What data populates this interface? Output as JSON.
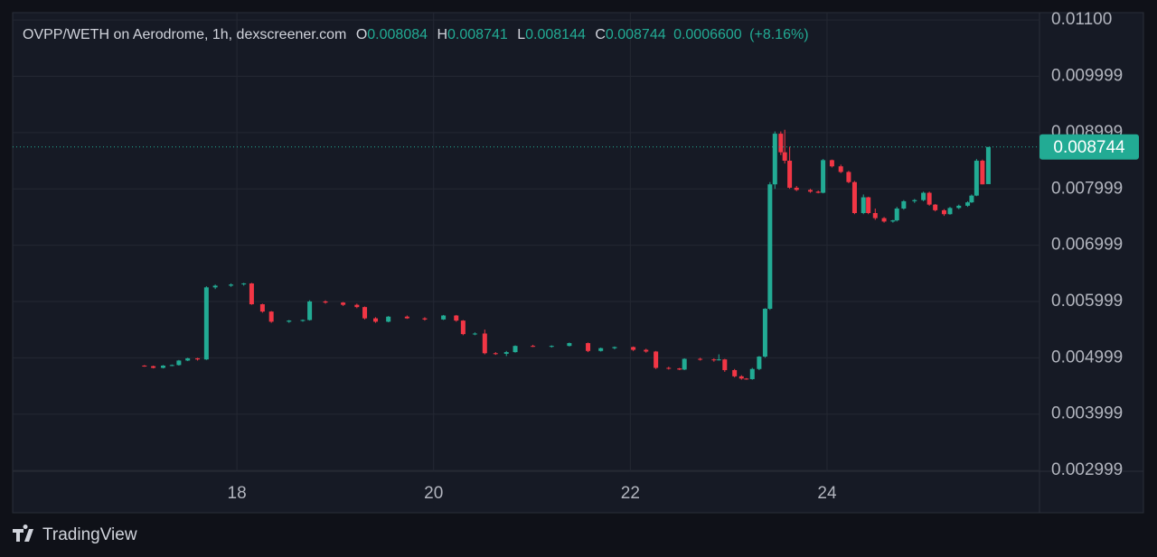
{
  "chart_data": {
    "type": "candlestick",
    "header": {
      "title": "OVPP/WETH on Aerodrome, 1h, dexscreener.com",
      "open_label": "O",
      "open": "0.008084",
      "high_label": "H",
      "high": "0.008741",
      "low_label": "L",
      "low": "0.008144",
      "close_label": "C",
      "close": "0.008744",
      "change": "0.0006600",
      "change_pct": "(+8.16%)"
    },
    "brand": "TradingView",
    "up_color": "#22ab94",
    "down_color": "#f23645",
    "grid": true,
    "last_price": {
      "value": 0.008744,
      "label": "0.008744"
    },
    "xlim": [
      15.72,
      26.16
    ],
    "xticks": [
      18,
      20,
      22,
      24
    ],
    "ylim": [
      0.002984,
      0.01113
    ],
    "yticks": [
      {
        "value": 0.011,
        "label": "0.01100"
      },
      {
        "value": 0.009999,
        "label": "0.009999"
      },
      {
        "value": 0.008999,
        "label": "0.008999"
      },
      {
        "value": 0.007999,
        "label": "0.007999"
      },
      {
        "value": 0.006999,
        "label": "0.006999"
      },
      {
        "value": 0.005999,
        "label": "0.005999"
      },
      {
        "value": 0.004999,
        "label": "0.004999"
      },
      {
        "value": 0.003999,
        "label": "0.003999"
      },
      {
        "value": 0.002999,
        "label": "0.002999"
      }
    ],
    "x": [
      17.06,
      17.15,
      17.25,
      17.34,
      17.41,
      17.5,
      17.6,
      17.69,
      17.78,
      17.94,
      18.07,
      18.15,
      18.26,
      18.35,
      18.53,
      18.67,
      18.74,
      18.9,
      19.08,
      19.22,
      19.3,
      19.41,
      19.54,
      19.73,
      19.91,
      20.1,
      20.23,
      20.3,
      20.42,
      20.52,
      20.63,
      20.74,
      20.83,
      21.01,
      21.2,
      21.38,
      21.57,
      21.7,
      21.84,
      22.03,
      22.16,
      22.26,
      22.39,
      22.5,
      22.55,
      22.71,
      22.85,
      22.9,
      22.96,
      23.06,
      23.13,
      23.18,
      23.24,
      23.31,
      23.37,
      23.42,
      23.47,
      23.53,
      23.57,
      23.62,
      23.69,
      23.83,
      23.91,
      23.96,
      24.05,
      24.14,
      24.22,
      24.28,
      24.37,
      24.42,
      24.49,
      24.58,
      24.67,
      24.71,
      24.78,
      24.89,
      24.98,
      25.04,
      25.1,
      25.19,
      25.25,
      25.34,
      25.43,
      25.47,
      25.52,
      25.58,
      25.64
    ],
    "open": [
      0.00486,
      0.00485,
      0.00482,
      0.00486,
      0.00487,
      0.00495,
      0.00499,
      0.00497,
      0.00625,
      0.00628,
      0.00631,
      0.00632,
      0.00595,
      0.00582,
      0.00564,
      0.00566,
      0.00567,
      0.006,
      0.00598,
      0.00594,
      0.0059,
      0.0057,
      0.00564,
      0.00573,
      0.0057,
      0.00568,
      0.00575,
      0.00566,
      0.00542,
      0.00543,
      0.00508,
      0.00507,
      0.0051,
      0.00521,
      0.0052,
      0.00521,
      0.00526,
      0.00512,
      0.00517,
      0.00519,
      0.00514,
      0.00511,
      0.00482,
      0.00481,
      0.00479,
      0.00498,
      0.00497,
      0.00496,
      0.00497,
      0.00478,
      0.00467,
      0.00463,
      0.00462,
      0.0048,
      0.00502,
      0.00587,
      0.00808,
      0.00898,
      0.00865,
      0.0085,
      0.00802,
      0.00798,
      0.00795,
      0.00793,
      0.00851,
      0.0084,
      0.0083,
      0.00812,
      0.00757,
      0.00785,
      0.00757,
      0.00748,
      0.00742,
      0.00744,
      0.00765,
      0.00778,
      0.0078,
      0.00793,
      0.00772,
      0.00762,
      0.00755,
      0.00766,
      0.0077,
      0.00776,
      0.00788,
      0.0085,
      0.008084
    ],
    "high": [
      0.00487,
      0.00486,
      0.00487,
      0.00488,
      0.00496,
      0.005,
      0.005,
      0.00627,
      0.0063,
      0.00632,
      0.00633,
      0.00633,
      0.00596,
      0.00583,
      0.00567,
      0.00568,
      0.00602,
      0.00602,
      0.00599,
      0.00596,
      0.00591,
      0.00572,
      0.00574,
      0.00575,
      0.00572,
      0.00576,
      0.00576,
      0.00567,
      0.00545,
      0.0055,
      0.0051,
      0.00512,
      0.00522,
      0.00523,
      0.00522,
      0.00527,
      0.00527,
      0.00518,
      0.0052,
      0.0052,
      0.00516,
      0.00512,
      0.00484,
      0.00482,
      0.00499,
      0.005,
      0.00499,
      0.00506,
      0.00498,
      0.0048,
      0.00469,
      0.00464,
      0.00482,
      0.00503,
      0.00588,
      0.00812,
      0.00902,
      0.00902,
      0.00905,
      0.00875,
      0.00805,
      0.008,
      0.00797,
      0.00853,
      0.00852,
      0.00843,
      0.00832,
      0.00814,
      0.0079,
      0.00786,
      0.00765,
      0.0075,
      0.00745,
      0.00768,
      0.0078,
      0.00782,
      0.00795,
      0.00795,
      0.00773,
      0.00764,
      0.00768,
      0.00772,
      0.00778,
      0.0079,
      0.00853,
      0.00852,
      0.008741
    ],
    "low": [
      0.00484,
      0.00481,
      0.00481,
      0.00485,
      0.00486,
      0.00494,
      0.00495,
      0.00496,
      0.00622,
      0.00626,
      0.00628,
      0.00594,
      0.0058,
      0.00562,
      0.00562,
      0.00564,
      0.00566,
      0.00596,
      0.00592,
      0.00588,
      0.00568,
      0.00562,
      0.00563,
      0.00569,
      0.00566,
      0.00567,
      0.00564,
      0.0054,
      0.0054,
      0.00506,
      0.00505,
      0.00503,
      0.00509,
      0.00519,
      0.00518,
      0.0052,
      0.0051,
      0.00511,
      0.00515,
      0.00512,
      0.00509,
      0.0048,
      0.00479,
      0.00478,
      0.00478,
      0.00495,
      0.00493,
      0.00495,
      0.00475,
      0.00465,
      0.00461,
      0.00461,
      0.00461,
      0.00478,
      0.005,
      0.00585,
      0.008,
      0.0086,
      0.00845,
      0.008,
      0.00796,
      0.00793,
      0.00792,
      0.00792,
      0.00838,
      0.00828,
      0.0081,
      0.00755,
      0.00755,
      0.00755,
      0.00745,
      0.0074,
      0.0074,
      0.00742,
      0.00763,
      0.00775,
      0.00778,
      0.0077,
      0.0076,
      0.00752,
      0.00754,
      0.00764,
      0.00768,
      0.00775,
      0.00787,
      0.00808,
      0.008144
    ],
    "close": [
      0.00485,
      0.00482,
      0.00486,
      0.00487,
      0.00495,
      0.00499,
      0.00497,
      0.00625,
      0.00628,
      0.0063,
      0.00632,
      0.00595,
      0.00582,
      0.00564,
      0.00566,
      0.00567,
      0.006,
      0.00598,
      0.00594,
      0.0059,
      0.0057,
      0.00564,
      0.00573,
      0.0057,
      0.00568,
      0.00575,
      0.00566,
      0.00542,
      0.00543,
      0.00508,
      0.00507,
      0.0051,
      0.00521,
      0.0052,
      0.00521,
      0.00526,
      0.00512,
      0.00517,
      0.00519,
      0.00514,
      0.00511,
      0.00482,
      0.00481,
      0.00479,
      0.00498,
      0.00497,
      0.00496,
      0.00497,
      0.00478,
      0.00467,
      0.00463,
      0.00462,
      0.0048,
      0.00502,
      0.00587,
      0.00808,
      0.00898,
      0.00865,
      0.0085,
      0.00802,
      0.00798,
      0.00795,
      0.00793,
      0.00851,
      0.0084,
      0.0083,
      0.00812,
      0.00757,
      0.00785,
      0.00757,
      0.00748,
      0.00742,
      0.00744,
      0.00765,
      0.00778,
      0.0078,
      0.00793,
      0.00772,
      0.00762,
      0.00755,
      0.00766,
      0.0077,
      0.00776,
      0.00788,
      0.0085,
      0.00808,
      0.008744
    ]
  }
}
